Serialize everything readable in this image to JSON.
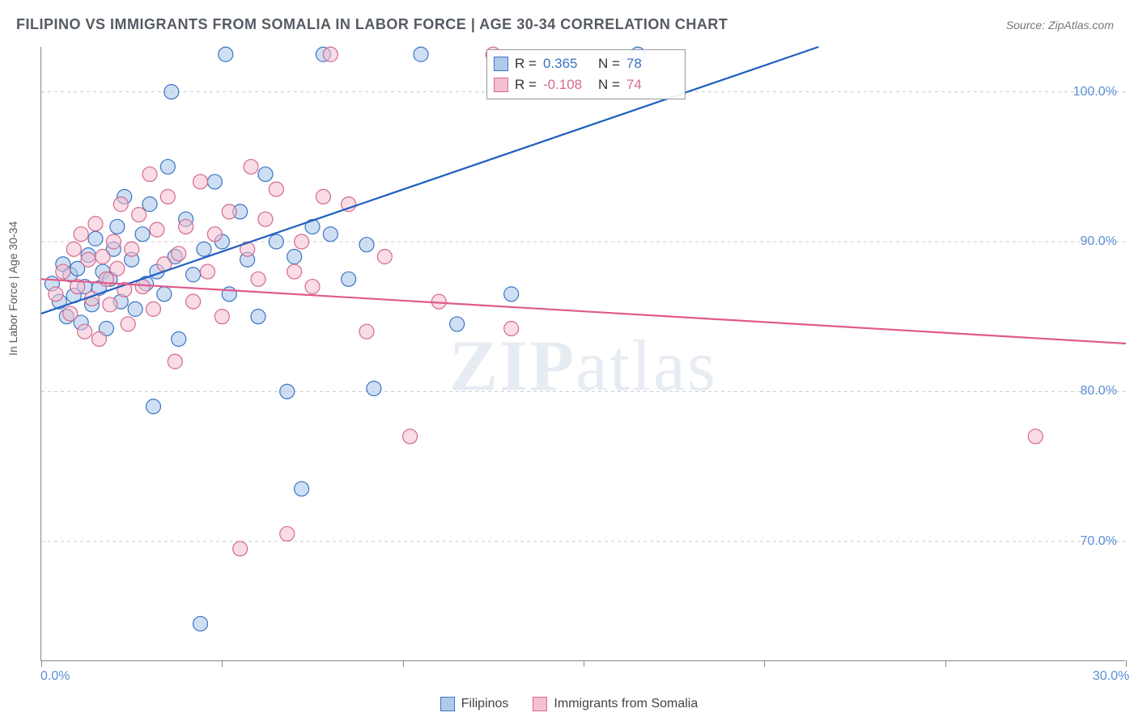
{
  "title": "FILIPINO VS IMMIGRANTS FROM SOMALIA IN LABOR FORCE | AGE 30-34 CORRELATION CHART",
  "source_label": "Source: ",
  "source_value": "ZipAtlas.com",
  "y_axis_label": "In Labor Force | Age 30-34",
  "watermark_a": "ZIP",
  "watermark_b": "atlas",
  "chart": {
    "type": "scatter-with-trendlines",
    "background_color": "#ffffff",
    "grid_color": "#cccccc",
    "axis_color": "#888888",
    "tick_label_color": "#5b8dd6",
    "xlim": [
      0,
      30
    ],
    "ylim": [
      62,
      103
    ],
    "x_ticks": [
      0,
      5,
      10,
      15,
      20,
      25,
      30
    ],
    "x_tick_labels": {
      "0": "0.0%",
      "30": "30.0%"
    },
    "y_ticks": [
      70,
      80,
      90,
      100
    ],
    "y_tick_labels": {
      "70": "70.0%",
      "80": "80.0%",
      "90": "90.0%",
      "100": "100.0%"
    },
    "marker_radius": 9,
    "marker_opacity": 0.55,
    "marker_stroke_width": 1.2,
    "trendline_width": 2.2,
    "series": [
      {
        "name": "Filipinos",
        "color_fill": "#a7c5ea",
        "color_stroke": "#3a75c4",
        "color_line": "#1f5fbf",
        "R": "0.365",
        "N": "78",
        "trendline": {
          "x1": 0,
          "y1": 85.2,
          "x2": 21.5,
          "y2": 103
        },
        "points": [
          [
            0.3,
            87.2
          ],
          [
            0.5,
            86.0
          ],
          [
            0.6,
            88.5
          ],
          [
            0.7,
            85.0
          ],
          [
            0.8,
            87.8
          ],
          [
            0.9,
            86.4
          ],
          [
            1.0,
            88.2
          ],
          [
            1.1,
            84.6
          ],
          [
            1.2,
            87.0
          ],
          [
            1.3,
            89.1
          ],
          [
            1.4,
            85.8
          ],
          [
            1.5,
            90.2
          ],
          [
            1.6,
            86.9
          ],
          [
            1.7,
            88.0
          ],
          [
            1.8,
            84.2
          ],
          [
            1.9,
            87.5
          ],
          [
            2.0,
            89.5
          ],
          [
            2.1,
            91.0
          ],
          [
            2.2,
            86.0
          ],
          [
            2.3,
            93.0
          ],
          [
            2.5,
            88.8
          ],
          [
            2.6,
            85.5
          ],
          [
            2.8,
            90.5
          ],
          [
            2.9,
            87.2
          ],
          [
            3.0,
            92.5
          ],
          [
            3.1,
            79.0
          ],
          [
            3.2,
            88.0
          ],
          [
            3.4,
            86.5
          ],
          [
            3.5,
            95.0
          ],
          [
            3.6,
            100.0
          ],
          [
            3.7,
            89.0
          ],
          [
            3.8,
            83.5
          ],
          [
            4.0,
            91.5
          ],
          [
            4.2,
            87.8
          ],
          [
            4.4,
            64.5
          ],
          [
            4.5,
            89.5
          ],
          [
            4.8,
            94.0
          ],
          [
            5.0,
            90.0
          ],
          [
            5.1,
            102.5
          ],
          [
            5.2,
            86.5
          ],
          [
            5.5,
            92.0
          ],
          [
            5.7,
            88.8
          ],
          [
            6.0,
            85.0
          ],
          [
            6.2,
            94.5
          ],
          [
            6.5,
            90.0
          ],
          [
            6.8,
            80.0
          ],
          [
            7.0,
            89.0
          ],
          [
            7.2,
            73.5
          ],
          [
            7.5,
            91.0
          ],
          [
            7.8,
            102.5
          ],
          [
            8.0,
            90.5
          ],
          [
            8.5,
            87.5
          ],
          [
            9.0,
            89.8
          ],
          [
            9.2,
            80.2
          ],
          [
            10.5,
            102.5
          ],
          [
            11.5,
            84.5
          ],
          [
            13.0,
            86.5
          ],
          [
            16.5,
            102.5
          ]
        ]
      },
      {
        "name": "Immigrants from Somalia",
        "color_fill": "#f4c0d0",
        "color_stroke": "#d46a8e",
        "color_line": "#e05a8a",
        "R": "-0.108",
        "N": "74",
        "trendline": {
          "x1": 0,
          "y1": 87.5,
          "x2": 30,
          "y2": 83.2
        },
        "points": [
          [
            0.4,
            86.5
          ],
          [
            0.6,
            88.0
          ],
          [
            0.8,
            85.2
          ],
          [
            0.9,
            89.5
          ],
          [
            1.0,
            87.0
          ],
          [
            1.1,
            90.5
          ],
          [
            1.2,
            84.0
          ],
          [
            1.3,
            88.8
          ],
          [
            1.4,
            86.2
          ],
          [
            1.5,
            91.2
          ],
          [
            1.6,
            83.5
          ],
          [
            1.7,
            89.0
          ],
          [
            1.8,
            87.5
          ],
          [
            1.9,
            85.8
          ],
          [
            2.0,
            90.0
          ],
          [
            2.1,
            88.2
          ],
          [
            2.2,
            92.5
          ],
          [
            2.3,
            86.8
          ],
          [
            2.4,
            84.5
          ],
          [
            2.5,
            89.5
          ],
          [
            2.7,
            91.8
          ],
          [
            2.8,
            87.0
          ],
          [
            3.0,
            94.5
          ],
          [
            3.1,
            85.5
          ],
          [
            3.2,
            90.8
          ],
          [
            3.4,
            88.5
          ],
          [
            3.5,
            93.0
          ],
          [
            3.7,
            82.0
          ],
          [
            3.8,
            89.2
          ],
          [
            4.0,
            91.0
          ],
          [
            4.2,
            86.0
          ],
          [
            4.4,
            94.0
          ],
          [
            4.6,
            88.0
          ],
          [
            4.8,
            90.5
          ],
          [
            5.0,
            85.0
          ],
          [
            5.2,
            92.0
          ],
          [
            5.5,
            69.5
          ],
          [
            5.7,
            89.5
          ],
          [
            5.8,
            95.0
          ],
          [
            6.0,
            87.5
          ],
          [
            6.2,
            91.5
          ],
          [
            6.5,
            93.5
          ],
          [
            6.8,
            70.5
          ],
          [
            7.0,
            88.0
          ],
          [
            7.2,
            90.0
          ],
          [
            7.5,
            87.0
          ],
          [
            7.8,
            93.0
          ],
          [
            8.0,
            102.5
          ],
          [
            8.5,
            92.5
          ],
          [
            9.0,
            84.0
          ],
          [
            9.5,
            89.0
          ],
          [
            10.2,
            77.0
          ],
          [
            11.0,
            86.0
          ],
          [
            12.5,
            102.5
          ],
          [
            13.0,
            84.2
          ],
          [
            27.5,
            77.0
          ]
        ]
      }
    ]
  },
  "stats": {
    "r_label": "R = ",
    "n_label": "N = "
  },
  "legend": {
    "filipinos": "Filipinos",
    "somalia": "Immigrants from Somalia"
  }
}
